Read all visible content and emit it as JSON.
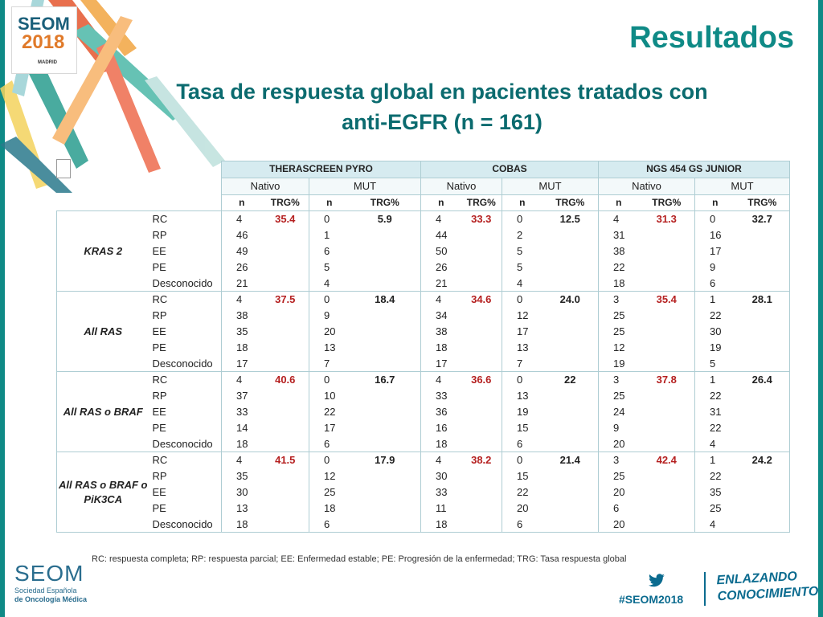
{
  "logo": {
    "name": "SEOM",
    "year": "2018",
    "city": "MADRID"
  },
  "title": "Resultados",
  "subtitle_line1": "Tasa de respuesta global en pacientes tratados con",
  "subtitle_line2": "anti-EGFR (n = 161)",
  "table": {
    "methods": [
      "THERASCREEN PYRO",
      "COBAS",
      "NGS 454 GS JUNIOR"
    ],
    "status": {
      "nativo": "Nativo",
      "mut": "MUT"
    },
    "cols": {
      "n": "n",
      "trg": "TRG%"
    },
    "responses": [
      "RC",
      "RP",
      "EE",
      "PE",
      "Desconocido"
    ],
    "groups": [
      {
        "label": "KRAS 2",
        "therascreen": {
          "nativo_n": [
            "4",
            "46",
            "49",
            "26",
            "21"
          ],
          "nativo_trg": "35.4",
          "mut_n": [
            "0",
            "1",
            "6",
            "5",
            "4"
          ],
          "mut_trg": "5.9"
        },
        "cobas": {
          "nativo_n": [
            "4",
            "44",
            "50",
            "26",
            "21"
          ],
          "nativo_trg": "33.3",
          "mut_n": [
            "0",
            "2",
            "5",
            "5",
            "4"
          ],
          "mut_trg": "12.5"
        },
        "ngs": {
          "nativo_n": [
            "4",
            "31",
            "38",
            "22",
            "18"
          ],
          "nativo_trg": "31.3",
          "mut_n": [
            "0",
            "16",
            "17",
            "9",
            "6"
          ],
          "mut_trg": "32.7"
        }
      },
      {
        "label": "All RAS",
        "therascreen": {
          "nativo_n": [
            "4",
            "38",
            "35",
            "18",
            "17"
          ],
          "nativo_trg": "37.5",
          "mut_n": [
            "0",
            "9",
            "20",
            "13",
            "7"
          ],
          "mut_trg": "18.4"
        },
        "cobas": {
          "nativo_n": [
            "4",
            "34",
            "38",
            "18",
            "17"
          ],
          "nativo_trg": "34.6",
          "mut_n": [
            "0",
            "12",
            "17",
            "13",
            "7"
          ],
          "mut_trg": "24.0"
        },
        "ngs": {
          "nativo_n": [
            "3",
            "25",
            "25",
            "12",
            "19"
          ],
          "nativo_trg": "35.4",
          "mut_n": [
            "1",
            "22",
            "30",
            "19",
            "5"
          ],
          "mut_trg": "28.1"
        }
      },
      {
        "label": "All RAS o BRAF",
        "therascreen": {
          "nativo_n": [
            "4",
            "37",
            "33",
            "14",
            "18"
          ],
          "nativo_trg": "40.6",
          "mut_n": [
            "0",
            "10",
            "22",
            "17",
            "6"
          ],
          "mut_trg": "16.7"
        },
        "cobas": {
          "nativo_n": [
            "4",
            "33",
            "36",
            "16",
            "18"
          ],
          "nativo_trg": "36.6",
          "mut_n": [
            "0",
            "13",
            "19",
            "15",
            "6"
          ],
          "mut_trg": "22"
        },
        "ngs": {
          "nativo_n": [
            "3",
            "25",
            "24",
            "9",
            "20"
          ],
          "nativo_trg": "37.8",
          "mut_n": [
            "1",
            "22",
            "31",
            "22",
            "4"
          ],
          "mut_trg": "26.4"
        }
      },
      {
        "label": "All RAS o BRAF o PiK3CA",
        "therascreen": {
          "nativo_n": [
            "4",
            "35",
            "30",
            "13",
            "18"
          ],
          "nativo_trg": "41.5",
          "mut_n": [
            "0",
            "12",
            "25",
            "18",
            "6"
          ],
          "mut_trg": "17.9"
        },
        "cobas": {
          "nativo_n": [
            "4",
            "30",
            "33",
            "11",
            "18"
          ],
          "nativo_trg": "38.2",
          "mut_n": [
            "0",
            "15",
            "22",
            "20",
            "6"
          ],
          "mut_trg": "21.4"
        },
        "ngs": {
          "nativo_n": [
            "3",
            "25",
            "20",
            "6",
            "20"
          ],
          "nativo_trg": "42.4",
          "mut_n": [
            "1",
            "22",
            "35",
            "25",
            "4"
          ],
          "mut_trg": "24.2"
        }
      }
    ]
  },
  "footnote": "RC: respuesta completa; RP: respuesta parcial; EE: Enfermedad estable; PE: Progresión de la enfermedad; TRG: Tasa respuesta global",
  "footer": {
    "seom_big": "SEOM",
    "seom_line1": "Sociedad Española",
    "seom_line2": "de Oncología Médica",
    "hashtag": "#SEOM2018",
    "slogan_line1": "ENLAZANDO",
    "slogan_line2": "CONOCIMIENTO"
  },
  "colors": {
    "accent": "#0f8a86",
    "header_fill": "#d6ebf0",
    "trg_red": "#b52020"
  }
}
